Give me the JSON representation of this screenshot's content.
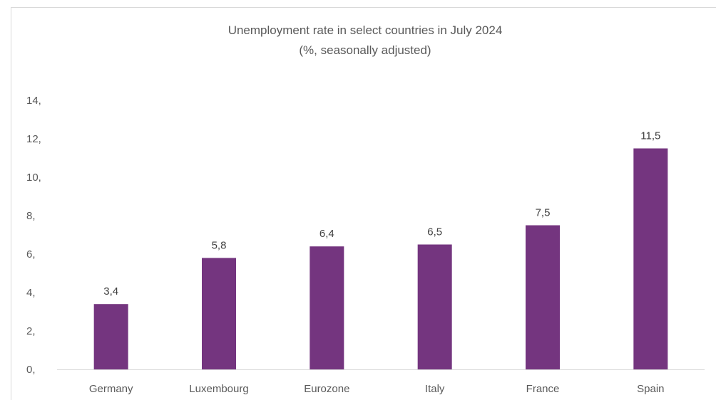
{
  "chart_data": {
    "type": "bar",
    "title": "Unemployment rate in select countries in July 2024",
    "subtitle": "(%, seasonally adjusted)",
    "xlabel": "",
    "ylabel": "",
    "categories": [
      "Germany",
      "Luxembourg",
      "Eurozone",
      "Italy",
      "France",
      "Spain"
    ],
    "values": [
      3.4,
      5.8,
      6.4,
      6.5,
      7.5,
      11.5
    ],
    "data_labels": [
      "3,4",
      "5,8",
      "6,4",
      "6,5",
      "7,5",
      "11,5"
    ],
    "ylim": [
      0,
      14
    ],
    "y_ticks": [
      0,
      2,
      4,
      6,
      8,
      10,
      12,
      14
    ],
    "y_tick_labels": [
      "0,",
      "2,",
      "4,",
      "6,",
      "8,",
      "10,",
      "12,",
      "14,"
    ],
    "grid": false,
    "legend": "none",
    "bar_color": "#74357F"
  }
}
